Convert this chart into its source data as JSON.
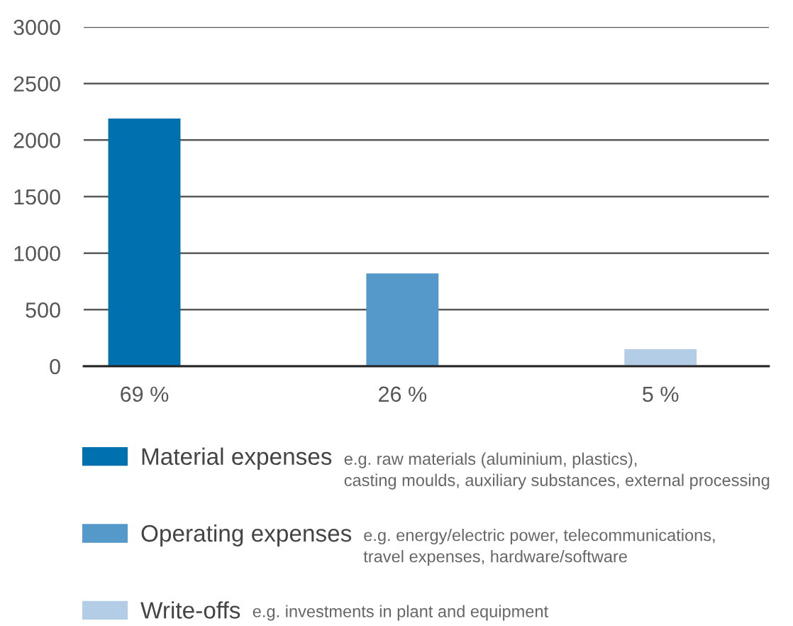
{
  "chart_data": {
    "type": "bar",
    "categories": [
      "69 %",
      "26 %",
      "5 %"
    ],
    "series": [
      {
        "name": "Material expenses",
        "color": "#0071ae",
        "values": [
          2190,
          null,
          null
        ]
      },
      {
        "name": "Operating expenses",
        "color": "#5598ca",
        "values": [
          null,
          820,
          null
        ]
      },
      {
        "name": "Write-offs",
        "color": "#b4cde7",
        "values": [
          null,
          null,
          150
        ]
      }
    ],
    "ylim": [
      0,
      3000
    ],
    "yticks": [
      0,
      500,
      1000,
      1500,
      2000,
      2500,
      3000
    ],
    "grid": "y",
    "legend": "bottom",
    "annotations": [
      "e.g. raw materials (aluminium, plastics),\ncasting moulds, auxiliary substances, external processing",
      "e.g. energy/electric power, telecommunications,\ntravel expenses, hardware/software",
      "e.g. investments in plant and equipment"
    ]
  }
}
